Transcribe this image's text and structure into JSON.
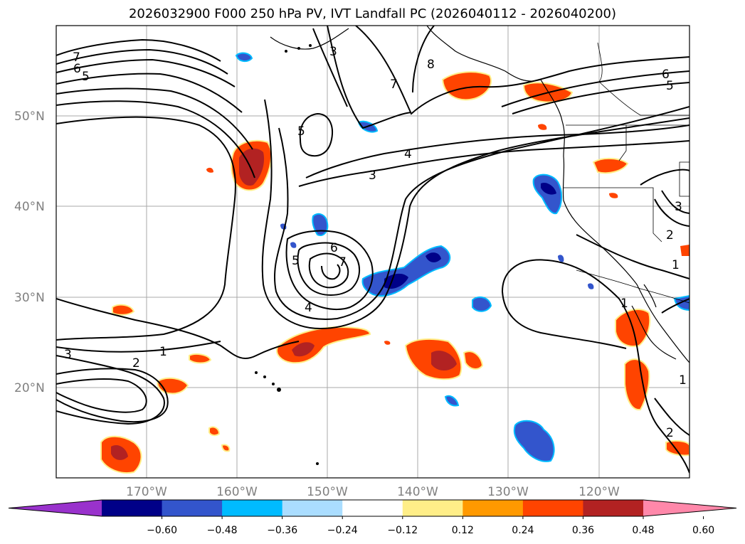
{
  "title": "2026032900 F000 250 hPa PV, IVT Landfall PC (2026040112 - 2026040200)",
  "map": {
    "lon_range": [
      -180,
      -110
    ],
    "lat_range": [
      10,
      60
    ],
    "lat_labels": [
      "50°N",
      "40°N",
      "30°N",
      "20°N"
    ],
    "lon_labels": [
      "170°W",
      "160°W",
      "150°W",
      "140°W",
      "130°W",
      "120°W"
    ],
    "gridlines": true,
    "contour_variable": "250 hPa PV",
    "contour_levels_labeled": [
      "1",
      "2",
      "3",
      "4",
      "5",
      "6",
      "7",
      "8"
    ],
    "shading_variable": "IVT Landfall PC",
    "colors": {
      "neg_extreme": "#9932CC",
      "neg_060": "#000088",
      "neg_048": "#3355CC",
      "neg_036": "#00BBFF",
      "neg_024": "#AADDFF",
      "neutral": "#FFFFFF",
      "pos_012": "#FFEE88",
      "pos_024": "#FF9900",
      "pos_036": "#FF4400",
      "pos_048": "#B22222",
      "pos_extreme": "#FF88AA"
    }
  },
  "colorbar": {
    "tick_labels": [
      "−0.60",
      "−0.48",
      "−0.36",
      "−0.24",
      "−0.12",
      "0.12",
      "0.24",
      "0.36",
      "0.48",
      "0.60"
    ],
    "bins": [
      "#9932CC",
      "#000088",
      "#3355CC",
      "#00BBFF",
      "#AADDFF",
      "#FFFFFF",
      "#FFEE88",
      "#FF9900",
      "#FF4400",
      "#B22222",
      "#FF88AA"
    ]
  }
}
